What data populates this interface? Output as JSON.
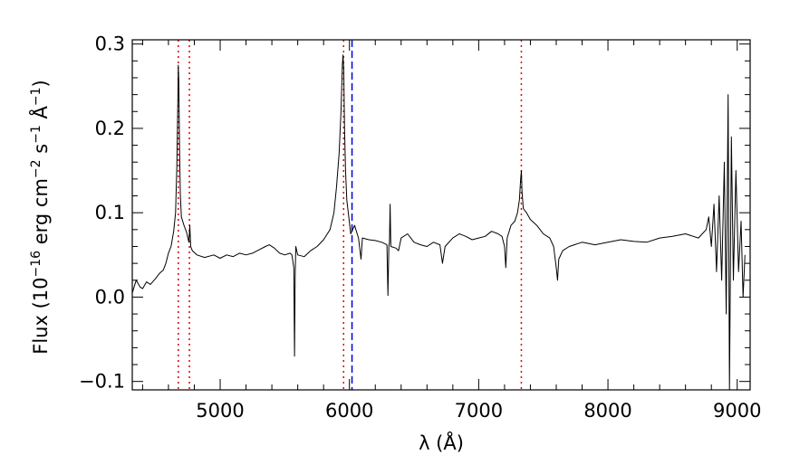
{
  "chart_data": {
    "type": "line",
    "title": "",
    "xlabel": "λ (Å)",
    "ylabel": "Flux (10−16 erg cm−2 s−1 Å−1)",
    "ylabel_parts": {
      "prefix": "Flux (10",
      "exp1": "−16",
      "erg_cm": " erg cm",
      "exp2": "−2",
      "s": " s",
      "exp3": "−1",
      "angstrom": " Å",
      "exp4": "−1",
      "suffix": ")"
    },
    "xlim": [
      4320,
      9100
    ],
    "ylim": [
      -0.11,
      0.305
    ],
    "x_ticks": [
      5000,
      6000,
      7000,
      8000,
      9000
    ],
    "x_tick_labels": [
      "5000",
      "6000",
      "7000",
      "8000",
      "9000"
    ],
    "y_ticks": [
      -0.1,
      0.0,
      0.1,
      0.2,
      0.3
    ],
    "y_tick_labels": [
      "−0.1",
      "0.0",
      "0.1",
      "0.2",
      "0.3"
    ],
    "grid": false,
    "legend": "none",
    "series": [
      {
        "color": "#000000",
        "points": [
          [
            4320,
            0.005
          ],
          [
            4350,
            0.02
          ],
          [
            4380,
            0.012
          ],
          [
            4400,
            0.01
          ],
          [
            4430,
            0.018
          ],
          [
            4460,
            0.015
          ],
          [
            4500,
            0.022
          ],
          [
            4530,
            0.028
          ],
          [
            4560,
            0.032
          ],
          [
            4580,
            0.04
          ],
          [
            4600,
            0.052
          ],
          [
            4620,
            0.06
          ],
          [
            4640,
            0.078
          ],
          [
            4655,
            0.1
          ],
          [
            4665,
            0.155
          ],
          [
            4672,
            0.225
          ],
          [
            4676,
            0.275
          ],
          [
            4680,
            0.255
          ],
          [
            4685,
            0.18
          ],
          [
            4692,
            0.12
          ],
          [
            4700,
            0.095
          ],
          [
            4720,
            0.085
          ],
          [
            4740,
            0.077
          ],
          [
            4758,
            0.065
          ],
          [
            4765,
            0.085
          ],
          [
            4772,
            0.06
          ],
          [
            4785,
            0.055
          ],
          [
            4820,
            0.05
          ],
          [
            4880,
            0.047
          ],
          [
            4950,
            0.05
          ],
          [
            5000,
            0.046
          ],
          [
            5050,
            0.05
          ],
          [
            5100,
            0.048
          ],
          [
            5150,
            0.052
          ],
          [
            5200,
            0.05
          ],
          [
            5250,
            0.052
          ],
          [
            5300,
            0.056
          ],
          [
            5350,
            0.06
          ],
          [
            5380,
            0.062
          ],
          [
            5420,
            0.058
          ],
          [
            5460,
            0.052
          ],
          [
            5500,
            0.05
          ],
          [
            5540,
            0.052
          ],
          [
            5555,
            0.05
          ],
          [
            5570,
            0.035
          ],
          [
            5575,
            -0.07
          ],
          [
            5580,
            0.025
          ],
          [
            5585,
            0.06
          ],
          [
            5600,
            0.05
          ],
          [
            5650,
            0.048
          ],
          [
            5700,
            0.055
          ],
          [
            5750,
            0.06
          ],
          [
            5800,
            0.068
          ],
          [
            5850,
            0.08
          ],
          [
            5880,
            0.1
          ],
          [
            5900,
            0.13
          ],
          [
            5920,
            0.17
          ],
          [
            5935,
            0.22
          ],
          [
            5945,
            0.275
          ],
          [
            5950,
            0.287
          ],
          [
            5956,
            0.27
          ],
          [
            5962,
            0.2
          ],
          [
            5970,
            0.15
          ],
          [
            5980,
            0.115
          ],
          [
            5995,
            0.095
          ],
          [
            6010,
            0.075
          ],
          [
            6040,
            0.085
          ],
          [
            6070,
            0.07
          ],
          [
            6090,
            0.045
          ],
          [
            6100,
            0.07
          ],
          [
            6150,
            0.068
          ],
          [
            6200,
            0.067
          ],
          [
            6250,
            0.065
          ],
          [
            6290,
            0.062
          ],
          [
            6298,
            0.002
          ],
          [
            6305,
            0.06
          ],
          [
            6310,
            0.065
          ],
          [
            6315,
            0.11
          ],
          [
            6320,
            0.06
          ],
          [
            6360,
            0.058
          ],
          [
            6380,
            0.055
          ],
          [
            6400,
            0.07
          ],
          [
            6450,
            0.075
          ],
          [
            6500,
            0.065
          ],
          [
            6550,
            0.062
          ],
          [
            6600,
            0.06
          ],
          [
            6650,
            0.065
          ],
          [
            6700,
            0.062
          ],
          [
            6720,
            0.04
          ],
          [
            6740,
            0.06
          ],
          [
            6800,
            0.07
          ],
          [
            6850,
            0.075
          ],
          [
            6900,
            0.072
          ],
          [
            6950,
            0.068
          ],
          [
            7000,
            0.07
          ],
          [
            7050,
            0.072
          ],
          [
            7100,
            0.078
          ],
          [
            7150,
            0.075
          ],
          [
            7180,
            0.072
          ],
          [
            7200,
            0.06
          ],
          [
            7210,
            0.035
          ],
          [
            7220,
            0.07
          ],
          [
            7250,
            0.085
          ],
          [
            7280,
            0.09
          ],
          [
            7300,
            0.1
          ],
          [
            7315,
            0.115
          ],
          [
            7325,
            0.14
          ],
          [
            7330,
            0.15
          ],
          [
            7335,
            0.125
          ],
          [
            7345,
            0.105
          ],
          [
            7370,
            0.1
          ],
          [
            7400,
            0.092
          ],
          [
            7450,
            0.085
          ],
          [
            7500,
            0.075
          ],
          [
            7550,
            0.07
          ],
          [
            7580,
            0.06
          ],
          [
            7600,
            0.035
          ],
          [
            7610,
            0.02
          ],
          [
            7620,
            0.045
          ],
          [
            7650,
            0.055
          ],
          [
            7700,
            0.06
          ],
          [
            7800,
            0.065
          ],
          [
            7900,
            0.062
          ],
          [
            8000,
            0.065
          ],
          [
            8100,
            0.068
          ],
          [
            8200,
            0.066
          ],
          [
            8300,
            0.065
          ],
          [
            8400,
            0.07
          ],
          [
            8500,
            0.072
          ],
          [
            8600,
            0.075
          ],
          [
            8700,
            0.07
          ],
          [
            8760,
            0.08
          ],
          [
            8780,
            0.095
          ],
          [
            8800,
            0.06
          ],
          [
            8820,
            0.11
          ],
          [
            8840,
            0.03
          ],
          [
            8860,
            0.12
          ],
          [
            8880,
            0.02
          ],
          [
            8900,
            0.16
          ],
          [
            8915,
            -0.02
          ],
          [
            8930,
            0.24
          ],
          [
            8940,
            -0.11
          ],
          [
            8955,
            0.19
          ],
          [
            8970,
            0.02
          ],
          [
            8990,
            0.15
          ],
          [
            9010,
            0.03
          ],
          [
            9030,
            0.09
          ],
          [
            9045,
            0.0
          ],
          [
            9060,
            0.05
          ]
        ]
      }
    ],
    "vertical_lines": [
      {
        "x": 4676,
        "style": "dotted",
        "color": "#e00000"
      },
      {
        "x": 4762,
        "style": "dotted",
        "color": "#e00000"
      },
      {
        "x": 5955,
        "style": "dotted",
        "color": "#e00000"
      },
      {
        "x": 6020,
        "style": "dashed",
        "color": "#0000dd"
      },
      {
        "x": 7330,
        "style": "dotted",
        "color": "#e00000"
      }
    ]
  }
}
